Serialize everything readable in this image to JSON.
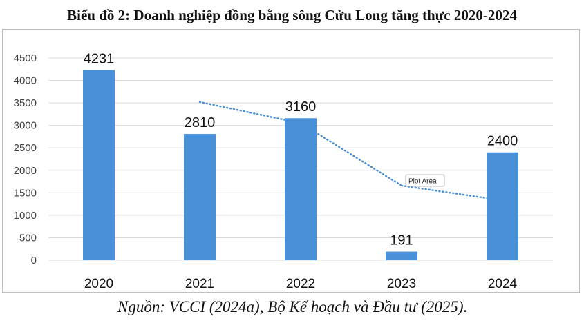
{
  "title": "Biểu đồ 2: Doanh nghiệp đồng bằng sông Cửu Long tăng thực 2020-2024",
  "source": "Nguồn: VCCI (2024a), Bộ Kế hoạch và Đầu tư (2025).",
  "tooltip": "Plot Area",
  "chart_data": {
    "type": "bar",
    "categories": [
      "2020",
      "2021",
      "2022",
      "2023",
      "2024"
    ],
    "values": [
      4231,
      2810,
      3160,
      191,
      2400
    ],
    "data_labels": [
      "4231",
      "2810",
      "3160",
      "191",
      "2400"
    ],
    "ylim": [
      0,
      4500
    ],
    "yticks": [
      0,
      500,
      1000,
      1500,
      2000,
      2500,
      3000,
      3500,
      4000,
      4500
    ],
    "trendline": {
      "style": "dotted",
      "points": [
        {
          "x": "2021",
          "y": 3520
        },
        {
          "x": "2022",
          "y": 3050
        },
        {
          "x": "2023",
          "y": 1660
        },
        {
          "x": "2024",
          "y": 1330
        }
      ]
    },
    "grid": true,
    "legend": "none",
    "colors": {
      "bar": "#4A90D9",
      "trendline": "#4A90D9",
      "grid": "#d9d9d9"
    }
  }
}
